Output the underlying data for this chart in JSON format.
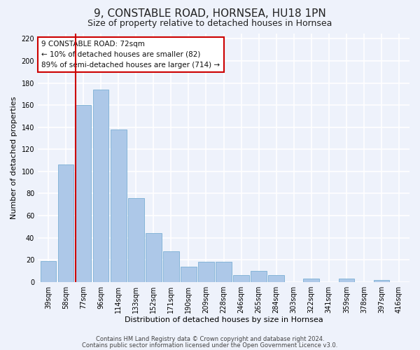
{
  "title": "9, CONSTABLE ROAD, HORNSEA, HU18 1PN",
  "subtitle": "Size of property relative to detached houses in Hornsea",
  "xlabel": "Distribution of detached houses by size in Hornsea",
  "ylabel": "Number of detached properties",
  "categories": [
    "39sqm",
    "58sqm",
    "77sqm",
    "96sqm",
    "114sqm",
    "133sqm",
    "152sqm",
    "171sqm",
    "190sqm",
    "209sqm",
    "228sqm",
    "246sqm",
    "265sqm",
    "284sqm",
    "303sqm",
    "322sqm",
    "341sqm",
    "359sqm",
    "378sqm",
    "397sqm",
    "416sqm"
  ],
  "values": [
    19,
    106,
    160,
    174,
    138,
    76,
    44,
    28,
    14,
    18,
    18,
    6,
    10,
    6,
    0,
    3,
    0,
    3,
    0,
    2,
    0
  ],
  "bar_color": "#adc8e8",
  "bar_edge_color": "#7aafd4",
  "vline_x_index": 2,
  "vline_color": "#cc0000",
  "annotation_text": "9 CONSTABLE ROAD: 72sqm\n← 10% of detached houses are smaller (82)\n89% of semi-detached houses are larger (714) →",
  "annotation_box_color": "#ffffff",
  "annotation_box_edge": "#cc0000",
  "ylim": [
    0,
    225
  ],
  "yticks": [
    0,
    20,
    40,
    60,
    80,
    100,
    120,
    140,
    160,
    180,
    200,
    220
  ],
  "footer1": "Contains HM Land Registry data © Crown copyright and database right 2024.",
  "footer2": "Contains public sector information licensed under the Open Government Licence v3.0.",
  "bg_color": "#eef2fb",
  "grid_color": "#ffffff",
  "title_fontsize": 11,
  "subtitle_fontsize": 9,
  "tick_fontsize": 7,
  "label_fontsize": 8,
  "annotation_fontsize": 7.5,
  "footer_fontsize": 6
}
